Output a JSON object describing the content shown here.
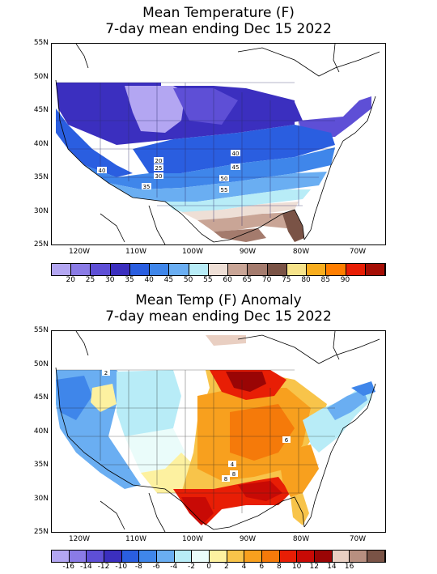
{
  "panel1": {
    "title_line1": "Mean Temperature (F)",
    "title_line2": "7-day mean ending Dec 15 2022",
    "lat_labels": [
      "55N",
      "50N",
      "45N",
      "40N",
      "35N",
      "30N",
      "25N"
    ],
    "lon_labels": [
      "120W",
      "110W",
      "100W",
      "90W",
      "80W",
      "70W"
    ],
    "colorbar_labels": [
      "20",
      "25",
      "30",
      "35",
      "40",
      "45",
      "50",
      "55",
      "60",
      "65",
      "70",
      "75",
      "80",
      "85",
      "90"
    ],
    "colorbar_colors": [
      "#b3a6f2",
      "#8a7be6",
      "#5e4fd6",
      "#3b2fbf",
      "#2a5ee0",
      "#3f86ea",
      "#6aaef2",
      "#b8ecf7",
      "#eedfd6",
      "#c9a596",
      "#a47b6d",
      "#7a5346",
      "#f6e38a",
      "#f8ad1e",
      "#ff7e00",
      "#e81e05",
      "#a50e05"
    ],
    "contour_labels": [
      "20",
      "25",
      "30",
      "35",
      "40",
      "40",
      "45",
      "50",
      "55"
    ]
  },
  "panel2": {
    "title_line1": "Mean Temp (F) Anomaly",
    "title_line2": "7-day mean ending Dec 15 2022",
    "lat_labels": [
      "55N",
      "50N",
      "45N",
      "40N",
      "35N",
      "30N",
      "25N"
    ],
    "lon_labels": [
      "120W",
      "110W",
      "100W",
      "90W",
      "80W",
      "70W"
    ],
    "colorbar_labels": [
      "-16",
      "-14",
      "-12",
      "-10",
      "-8",
      "-6",
      "-4",
      "-2",
      "0",
      "2",
      "4",
      "6",
      "8",
      "10",
      "12",
      "14",
      "16"
    ],
    "colorbar_colors": [
      "#b3a6f2",
      "#8a7be6",
      "#5e4fd6",
      "#3b2fbf",
      "#2a5ee0",
      "#3f86ea",
      "#6aaef2",
      "#b8ecf7",
      "#eafcfa",
      "#fdf1a0",
      "#f8c44a",
      "#f8a01e",
      "#f57a0a",
      "#e81e05",
      "#c80a05",
      "#9a0505",
      "#e9cfc2",
      "#b88f80",
      "#7a5346"
    ],
    "contour_labels": [
      "2",
      "6",
      "4",
      "8",
      "8"
    ]
  }
}
